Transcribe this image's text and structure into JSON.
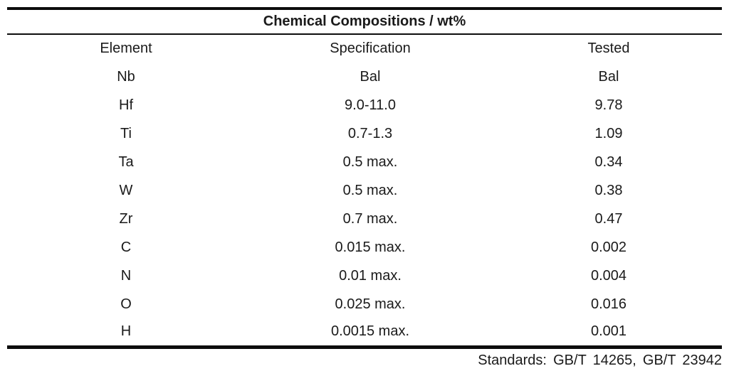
{
  "table": {
    "title": "Chemical Compositions / wt%",
    "columns": [
      "Element",
      "Specification",
      "Tested"
    ],
    "rows": [
      [
        "Nb",
        "Bal",
        "Bal"
      ],
      [
        "Hf",
        "9.0-11.0",
        "9.78"
      ],
      [
        "Ti",
        "0.7-1.3",
        "1.09"
      ],
      [
        "Ta",
        "0.5 max.",
        "0.34"
      ],
      [
        "W",
        "0.5 max.",
        "0.38"
      ],
      [
        "Zr",
        "0.7 max.",
        "0.47"
      ],
      [
        "C",
        "0.015 max.",
        "0.002"
      ],
      [
        "N",
        "0.01 max.",
        "0.004"
      ],
      [
        "O",
        "0.025 max.",
        "0.016"
      ],
      [
        "H",
        "0.0015 max.",
        "0.001"
      ]
    ],
    "footer": "Standards: GB/T 14265, GB/T 23942"
  },
  "colors": {
    "text": "#1a1a1a",
    "rule": "#0d0d0d",
    "background": "#ffffff"
  }
}
